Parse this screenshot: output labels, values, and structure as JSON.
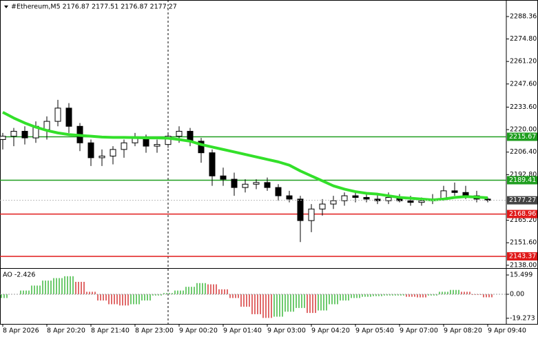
{
  "chart_data": {
    "type": "candlestick",
    "title": "#Ethereum,M5  2176.87 2177.51 2176.87 2177.27",
    "categories": [
      "8 Apr 2026",
      null,
      null,
      null,
      "8 Apr 20:20",
      null,
      null,
      null,
      "8 Apr 21:40",
      null,
      null,
      null,
      "8 Apr 23:00",
      null,
      null,
      null,
      "9 Apr 00:20",
      null,
      null,
      null,
      "9 Apr 01:40",
      null,
      null,
      null,
      "9 Apr 03:00",
      null,
      null,
      null,
      "9 Apr 04:20",
      null,
      null,
      null,
      "9 Apr 05:40",
      null,
      null,
      null,
      "9 Apr 07:00",
      null,
      null,
      null,
      "9 Apr 08:20",
      null,
      null,
      null,
      "9 Apr 09:40"
    ],
    "ohlc": [
      [
        2214,
        2218,
        2208,
        2216
      ],
      [
        2216,
        2221,
        2210,
        2219
      ],
      [
        2219,
        2222,
        2211,
        2215
      ],
      [
        2215,
        2225,
        2212,
        2222
      ],
      [
        2220,
        2228,
        2214,
        2225
      ],
      [
        2225,
        2238,
        2222,
        2233
      ],
      [
        2233,
        2236,
        2218,
        2222
      ],
      [
        2222,
        2224,
        2207,
        2212
      ],
      [
        2212,
        2214,
        2198,
        2203
      ],
      [
        2203,
        2208,
        2198,
        2204
      ],
      [
        2204,
        2210,
        2199,
        2208
      ],
      [
        2208,
        2214,
        2203,
        2212
      ],
      [
        2212,
        2218,
        2210,
        2215
      ],
      [
        2215,
        2217,
        2206,
        2210
      ],
      [
        2210,
        2214,
        2206,
        2211
      ],
      [
        2211,
        2218,
        2209,
        2216
      ],
      [
        2216,
        2222,
        2212,
        2219
      ],
      [
        2219,
        2221,
        2210,
        2213
      ],
      [
        2213,
        2215,
        2200,
        2206
      ],
      [
        2206,
        2208,
        2186,
        2192
      ],
      [
        2192,
        2197,
        2186,
        2190
      ],
      [
        2190,
        2194,
        2180,
        2185
      ],
      [
        2185,
        2190,
        2182,
        2187
      ],
      [
        2187,
        2190,
        2184,
        2188
      ],
      [
        2188,
        2191,
        2183,
        2185
      ],
      [
        2185,
        2187,
        2177,
        2180
      ],
      [
        2180,
        2183,
        2176,
        2178
      ],
      [
        2178,
        2180,
        2152,
        2165
      ],
      [
        2165,
        2175,
        2158,
        2172
      ],
      [
        2172,
        2178,
        2168,
        2175
      ],
      [
        2175,
        2180,
        2172,
        2177
      ],
      [
        2177,
        2182,
        2174,
        2180
      ],
      [
        2180,
        2183,
        2176,
        2179
      ],
      [
        2179,
        2182,
        2176,
        2178
      ],
      [
        2178,
        2181,
        2175,
        2177
      ],
      [
        2177,
        2182,
        2175,
        2179
      ],
      [
        2179,
        2181,
        2176,
        2177
      ],
      [
        2177,
        2180,
        2174,
        2176
      ],
      [
        2176,
        2179,
        2174,
        2177
      ],
      [
        2177,
        2181,
        2175,
        2178
      ],
      [
        2178,
        2186,
        2177,
        2183
      ],
      [
        2183,
        2188,
        2180,
        2182
      ],
      [
        2182,
        2186,
        2178,
        2180
      ],
      [
        2180,
        2183,
        2176,
        2178
      ],
      [
        2178,
        2179,
        2176,
        2177.27
      ]
    ],
    "up_color": "#ffffff",
    "down_color": "#000000",
    "ma": {
      "color": "#33e02a",
      "values": [
        2230.5,
        2227,
        2224,
        2221.5,
        2219.5,
        2218,
        2217,
        2216.5,
        2216,
        2215.5,
        2215.3,
        2215.3,
        2215.2,
        2215,
        2215,
        2214.8,
        2214,
        2213,
        2211,
        2209.5,
        2208,
        2206.5,
        2205,
        2203.5,
        2202,
        2200.5,
        2198.5,
        2195,
        2192,
        2189,
        2186,
        2184,
        2182.5,
        2181.5,
        2181,
        2180,
        2179,
        2178.5,
        2178,
        2177.5,
        2178,
        2179,
        2179.5,
        2179.2,
        2178.8
      ]
    },
    "ylim": [
      2136.7,
      2298.36
    ],
    "yticks": [
      2288.36,
      {
        "value": 2274.8,
        "label": "2274.80"
      },
      {
        "value": 2261.2,
        "label": "2261.20"
      },
      {
        "value": 2247.6,
        "label": "2247.60"
      },
      {
        "value": 2233.6,
        "label": "2233.60"
      },
      {
        "value": 2220,
        "label": "2220.00"
      },
      {
        "value": 2206.4,
        "label": "2206.40"
      },
      {
        "value": 2192.8,
        "label": "2192.80"
      },
      {
        "value": 2165.2,
        "label": "2165.20"
      },
      {
        "value": 2151.6,
        "label": "2151.60"
      },
      {
        "value": 2138,
        "label": "2138.00"
      }
    ],
    "levels": [
      {
        "value": 2215.67,
        "color": "#1f9e1f"
      },
      {
        "value": 2189.41,
        "color": "#1f9e1f"
      },
      {
        "value": 2168.96,
        "color": "#e01a1a"
      },
      {
        "value": 2143.37,
        "color": "#e01a1a"
      }
    ],
    "last_price": 2177.27,
    "last_color": "#444444",
    "ao": {
      "title": "AO -2.426",
      "up_color": "#1fae1f",
      "down_color": "#d01818",
      "values": [
        -3,
        0,
        3,
        7,
        11,
        13,
        14.5,
        10,
        2,
        -5,
        -8,
        -9,
        -8,
        -5,
        -1,
        1,
        3,
        6,
        9,
        8,
        4,
        -3,
        -10,
        -16,
        -19,
        -18,
        -14,
        -11,
        -15,
        -13,
        -8,
        -5,
        -3,
        -2,
        -1.5,
        -1,
        -1,
        -2,
        -2.5,
        -1,
        2,
        3.5,
        2,
        -0.5,
        -2.426
      ],
      "ylim": [
        -23.8,
        19.94
      ],
      "yticks": [
        15.499,
        {
          "value": 0,
          "label": "0.00"
        },
        -19.273
      ]
    }
  }
}
